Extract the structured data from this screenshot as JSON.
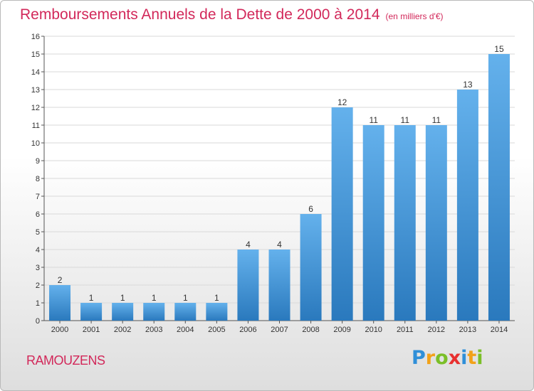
{
  "header": {
    "title": "Remboursements Annuels de la Dette de 2000 à 2014",
    "unit": "(en milliers d'€)"
  },
  "footer": {
    "commune": "RAMOUZENS",
    "logo": "Proxiti"
  },
  "colors": {
    "title": "#d2285a",
    "bar_top": "#64b1ec",
    "bar_bottom": "#2a79bd",
    "grid": "#d9d9d9"
  },
  "chart_data": {
    "type": "bar",
    "categories": [
      "2000",
      "2001",
      "2002",
      "2003",
      "2004",
      "2005",
      "2006",
      "2007",
      "2008",
      "2009",
      "2010",
      "2011",
      "2012",
      "2013",
      "2014"
    ],
    "values": [
      2,
      1,
      1,
      1,
      1,
      1,
      4,
      4,
      6,
      12,
      11,
      11,
      11,
      13,
      15
    ],
    "title": "Remboursements Annuels de la Dette de 2000 à 2014",
    "ylim": [
      0,
      16
    ],
    "yticks": [
      0,
      1,
      2,
      3,
      4,
      5,
      6,
      7,
      8,
      9,
      10,
      11,
      12,
      13,
      14,
      15,
      16
    ],
    "grid": true,
    "data_labels": true
  }
}
